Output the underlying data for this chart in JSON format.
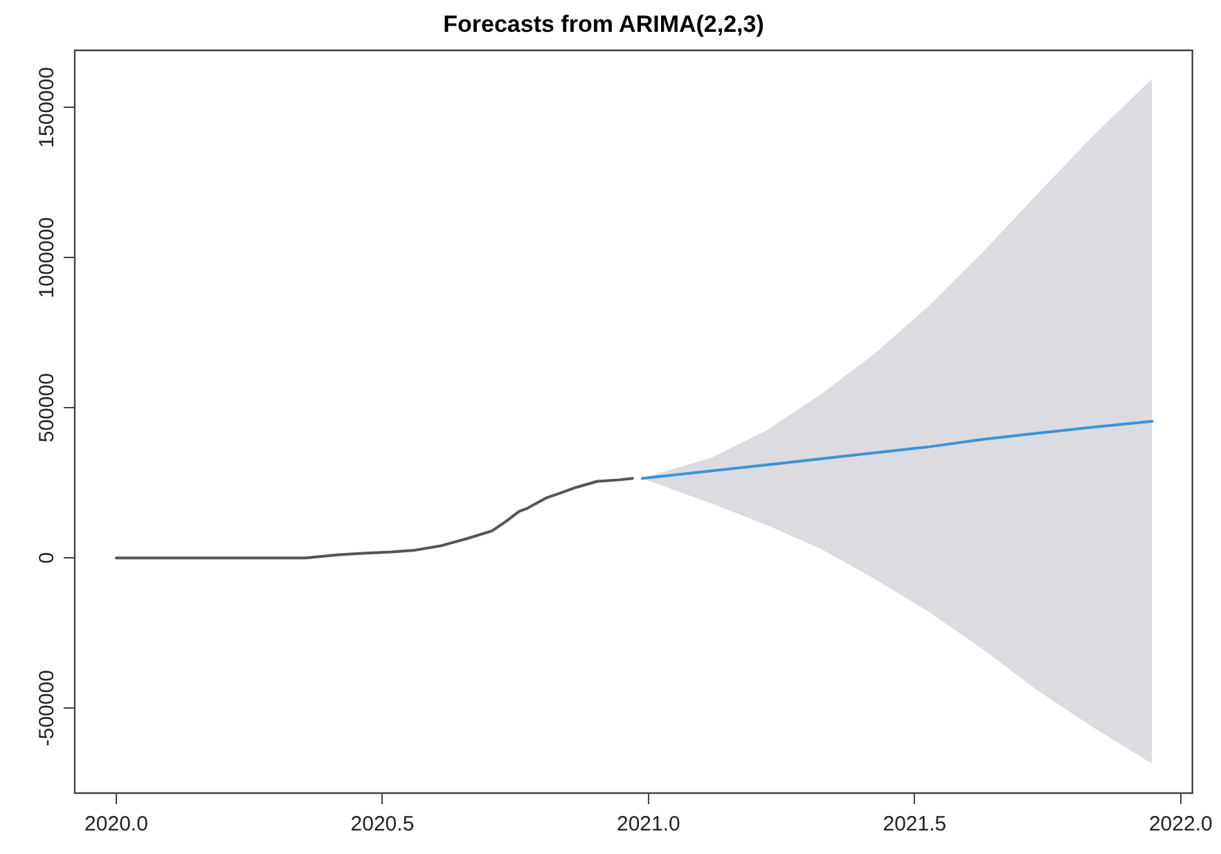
{
  "chart_data": {
    "type": "line",
    "title": "Forecasts from ARIMA(2,2,3)",
    "series": [
      {
        "color": "#555555",
        "x": [
          2020.0,
          2020.213,
          2020.355,
          2020.416,
          2020.457,
          2020.518,
          2020.558,
          2020.609,
          2020.66,
          2020.706,
          2020.731,
          2020.757,
          2020.772,
          2020.808,
          2020.833,
          2020.864,
          2020.904,
          2020.945,
          2020.97
        ],
        "values": [
          0,
          0,
          0,
          10000,
          15000,
          20000,
          25000,
          40000,
          65000,
          90000,
          120000,
          155000,
          165000,
          200000,
          215000,
          235000,
          255000,
          260000,
          265000
        ]
      },
      {
        "color": "#3a94d8",
        "x": [
          2020.988,
          2021.12,
          2021.222,
          2021.324,
          2021.425,
          2021.527,
          2021.629,
          2021.73,
          2021.832,
          2021.946
        ],
        "values": [
          265000,
          290000,
          310000,
          330000,
          350000,
          370000,
          395000,
          415000,
          435000,
          455000
        ],
        "lower": [
          265000,
          180000,
          110000,
          30000,
          -70000,
          -180000,
          -305000,
          -440000,
          -560000,
          -685000
        ],
        "upper": [
          265000,
          335000,
          425000,
          545000,
          680000,
          840000,
          1020000,
          1210000,
          1400000,
          1595000
        ]
      }
    ],
    "xlim": [
      2019.922,
      2022.022
    ],
    "ylim": [
      -783000,
      1690000
    ],
    "xticks": [
      {
        "value": 2020,
        "label": "2020.0"
      },
      {
        "value": 2020.5,
        "label": "2020.5"
      },
      {
        "value": 2021,
        "label": "2021.0"
      },
      {
        "value": 2021.5,
        "label": "2021.5"
      },
      {
        "value": 2022,
        "label": "2022.0"
      }
    ],
    "yticks": [
      -500000,
      0,
      500000,
      1000000,
      1500000
    ],
    "grid": false,
    "legend": false,
    "marker": "none",
    "line_style": "solid"
  }
}
